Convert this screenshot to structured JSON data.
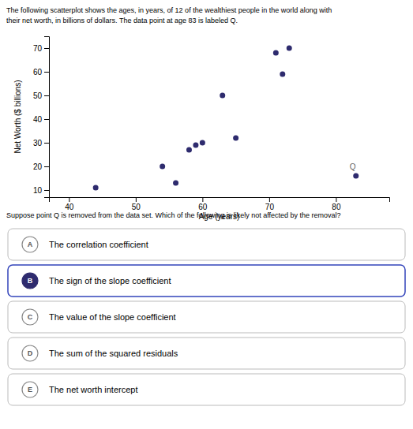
{
  "chart_data": {
    "type": "scatter",
    "title": "The following scatterplot shows the ages, in years, of 12 of the wealthiest people in the world along with\ntheir net worth, in billions of dollars. The data point at age 83 is labeled Q.",
    "x": [
      44,
      54,
      56,
      58,
      59,
      60,
      63,
      65,
      71,
      72,
      73,
      83
    ],
    "values": [
      11,
      20,
      13,
      27,
      29,
      30,
      50,
      32,
      68,
      59,
      70,
      16
    ],
    "color": "#2e2b6e",
    "xlabel": "Age (years)",
    "ylabel": "Net Worth ($ billions)",
    "xlim": [
      37,
      88
    ],
    "ylim": [
      7,
      75
    ],
    "xticks": [
      40,
      50,
      60,
      70,
      80
    ],
    "yticks": [
      10,
      20,
      30,
      40,
      50,
      60,
      70
    ],
    "grid": false,
    "annotations": [
      {
        "text": "Q",
        "x": 83,
        "y": 16
      }
    ],
    "question": "Suppose point Q is removed from the data set. Which of the following is likely not affected by the removal?",
    "options": [
      {
        "label": "A",
        "text": "The correlation coefficient",
        "selected": false
      },
      {
        "label": "B",
        "text": "The sign of the slope coefficient",
        "selected": true
      },
      {
        "label": "C",
        "text": "The value of the slope coefficient",
        "selected": false
      },
      {
        "label": "D",
        "text": "The sum of the squared residuals",
        "selected": false
      },
      {
        "label": "E",
        "text": "The net worth intercept",
        "selected": false
      }
    ]
  }
}
